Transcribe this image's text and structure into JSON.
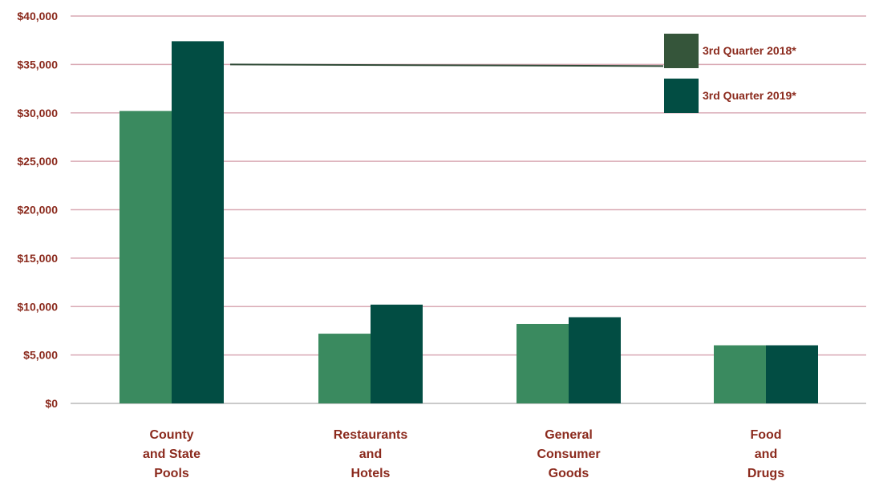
{
  "chart_data": {
    "type": "bar",
    "categories": [
      [
        "County",
        "and State",
        "Pools"
      ],
      [
        "Restaurants",
        "and",
        "Hotels"
      ],
      [
        "General",
        "Consumer",
        "Goods"
      ],
      [
        "Food",
        "and",
        "Drugs"
      ]
    ],
    "series": [
      {
        "name": "3rd Quarter 2018*",
        "color": "#3a8a5f",
        "legend_color": "#35553a",
        "values": [
          30200,
          7200,
          8200,
          6000
        ]
      },
      {
        "name": "3rd Quarter 2019*",
        "color": "#024d43",
        "legend_color": "#024d43",
        "values": [
          37400,
          10200,
          8900,
          6000
        ]
      }
    ],
    "ylim": [
      0,
      40000
    ],
    "yticks": [
      "$0",
      "$5,000",
      "$10,000",
      "$15,000",
      "$20,000",
      "$25,000",
      "$30,000",
      "$35,000",
      "$40,000"
    ],
    "ytick_values": [
      0,
      5000,
      10000,
      15000,
      20000,
      25000,
      30000,
      35000,
      40000
    ],
    "grid": true,
    "legend_position": "top-right",
    "colors": {
      "label_text": "#8b2a1d",
      "gridline": "#d9a9b4",
      "baseline": "#b9b9b9",
      "leader_line": "#2f4a36"
    }
  }
}
